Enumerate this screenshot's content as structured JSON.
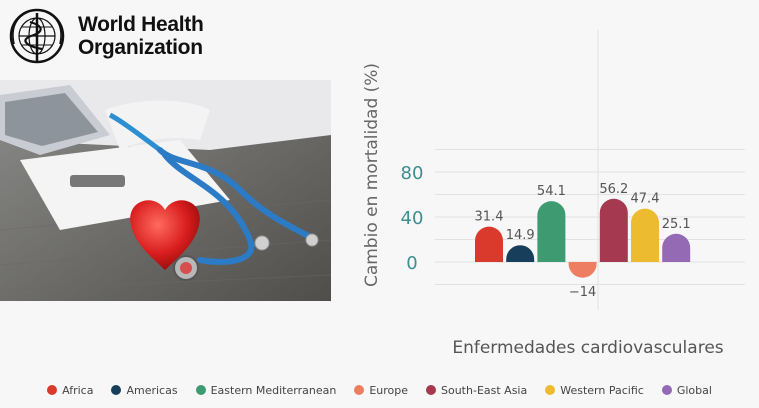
{
  "logo": {
    "line1": "World Health",
    "line2": "Organization"
  },
  "colors": {
    "Africa": "#d93a2b",
    "Americas": "#173f5c",
    "Eastern Mediterranean": "#3e9a70",
    "Europe": "#ee7e62",
    "South-East Asia": "#a5394f",
    "Western Pacific": "#ecbb2f",
    "Global": "#946ab4"
  },
  "chart_data": {
    "type": "bar",
    "categories": [
      "Africa",
      "Americas",
      "Eastern Mediterranean",
      "Europe",
      "South-East Asia",
      "Western Pacific",
      "Global"
    ],
    "values": [
      31.4,
      14.9,
      54.1,
      -14,
      56.2,
      47.4,
      25.1
    ],
    "value_labels": [
      "31.4",
      "14.9",
      "54.1",
      "−14",
      "56.2",
      "47.4",
      "25.1"
    ],
    "xlabel": "Enfermedades cardiovasculares",
    "ylabel": "Cambio en mortalidad (%)",
    "yticks": [
      "0",
      "40",
      "80"
    ],
    "ytick_values": [
      0,
      40,
      80
    ],
    "ylim": [
      -20,
      100
    ],
    "grid": true,
    "legend_position": "bottom"
  }
}
